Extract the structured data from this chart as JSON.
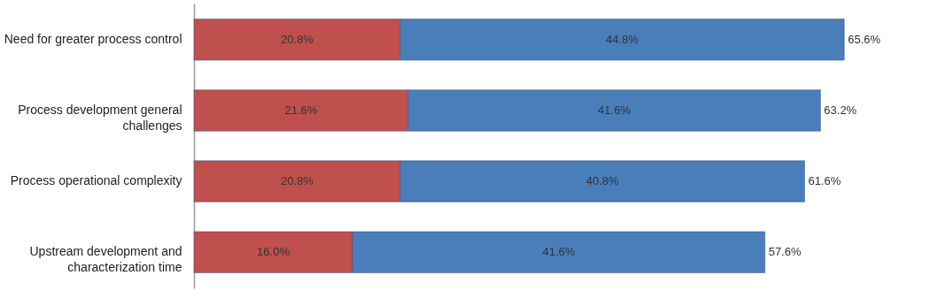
{
  "chart_data": {
    "type": "bar",
    "orientation": "horizontal",
    "stacked": true,
    "categories": [
      "Need for greater process control",
      "Process development general challenges",
      "Process operational complexity",
      "Upstream development and characterization time"
    ],
    "series": [
      {
        "color": "#c0504d",
        "values": [
          20.8,
          21.6,
          20.8,
          16.0
        ],
        "value_labels": [
          "20.8%",
          "21.6%",
          "20.8%",
          "16.0%"
        ]
      },
      {
        "color": "#4a7ebb",
        "values": [
          44.8,
          41.6,
          40.8,
          41.6
        ],
        "value_labels": [
          "44.8%",
          "41.6%",
          "40.8%",
          "41.6%"
        ]
      }
    ],
    "totals": [
      "65.6%",
      "63.2%",
      "61.6%",
      "57.6%"
    ],
    "xlim": [
      0,
      73
    ],
    "tick_labels": "y",
    "grid": false,
    "legend": false
  }
}
